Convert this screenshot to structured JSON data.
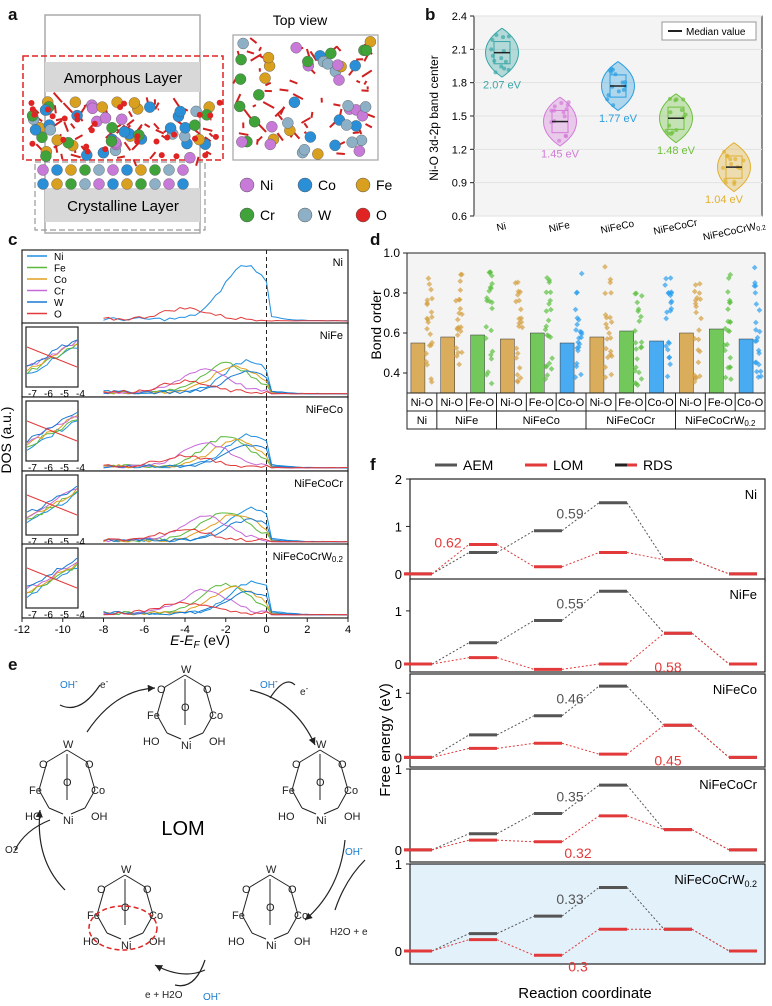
{
  "panel_labels": {
    "a": "a",
    "b": "b",
    "c": "c",
    "d": "d",
    "e": "e",
    "f": "f"
  },
  "panel_a": {
    "amorphous_label": "Amorphous Layer",
    "crystalline_label": "Crystalline Layer",
    "top_view_label": "Top view",
    "legend": [
      {
        "label": "Ni",
        "color": "#c77ad8"
      },
      {
        "label": "Co",
        "color": "#2a8fd6"
      },
      {
        "label": "Fe",
        "color": "#d9a020"
      },
      {
        "label": "Cr",
        "color": "#3fa33a"
      },
      {
        "label": "W",
        "color": "#8db0c6"
      },
      {
        "label": "O",
        "color": "#e02424"
      }
    ]
  },
  "chart_data": [
    {
      "id": "b",
      "type": "violin",
      "ylabel": "Ni-O 3d-2p band center",
      "ylim": [
        0.6,
        2.4
      ],
      "yticks": [
        "0.6",
        "0.9",
        "1.2",
        "1.5",
        "1.8",
        "2.1",
        "2.4"
      ],
      "legend": "Median value",
      "categories": [
        "Ni",
        "NiFe",
        "NiFeCo",
        "NiFeCoCr",
        "NiFeCoCrW0.2"
      ],
      "medians": [
        2.07,
        1.45,
        1.77,
        1.48,
        1.04
      ],
      "median_labels": [
        "2.07 eV",
        "1.45 eV",
        "1.77 eV",
        "1.48 eV",
        "1.04 eV"
      ],
      "colors": [
        "#3aa6a6",
        "#d47ad8",
        "#2a9ee0",
        "#6ec13d",
        "#e0b030"
      ]
    },
    {
      "id": "c",
      "type": "line",
      "ylabel": "DOS (a.u.)",
      "xlabel": "E-EF (eV)",
      "xlim": [
        -12,
        4
      ],
      "xticks": [
        "-12",
        "-10",
        "-8",
        "-6",
        "-4",
        "-2",
        "0",
        "2",
        "4"
      ],
      "legend": [
        {
          "label": "Ni",
          "color": "#1f8fe0"
        },
        {
          "label": "Fe",
          "color": "#5cb83a"
        },
        {
          "label": "Co",
          "color": "#e0a020"
        },
        {
          "label": "Cr",
          "color": "#c66ad8"
        },
        {
          "label": "W",
          "color": "#1a7ad0"
        },
        {
          "label": "O",
          "color": "#e23a3a"
        }
      ],
      "subpanels": [
        "Ni",
        "NiFe",
        "NiFeCo",
        "NiFeCoCr",
        "NiFeCoCrW0.2"
      ],
      "inset_ticks": [
        "-7",
        "-6",
        "-5",
        "-4"
      ]
    },
    {
      "id": "d",
      "type": "bar",
      "ylabel": "Bond order",
      "ylim": [
        0.3,
        1.0
      ],
      "yticks": [
        "0.4",
        "0.6",
        "0.8",
        "1.0"
      ],
      "bond_labels": [
        "Ni-O",
        "Ni-O",
        "Fe-O",
        "Ni-O",
        "Fe-O",
        "Co-O",
        "Ni-O",
        "Fe-O",
        "Co-O",
        "Ni-O",
        "Fe-O",
        "Co-O"
      ],
      "groups": [
        "Ni",
        "NiFe",
        "NiFeCo",
        "NiFeCoCr",
        "NiFeCoCrW0.2"
      ],
      "values": [
        0.55,
        0.58,
        0.59,
        0.57,
        0.6,
        0.55,
        0.58,
        0.61,
        0.56,
        0.6,
        0.62,
        0.57
      ],
      "bar_colors": [
        "#d4a040",
        "#d4a040",
        "#5cc040",
        "#d4a040",
        "#5cc040",
        "#2a9ef0",
        "#d4a040",
        "#5cc040",
        "#2a9ef0",
        "#d4a040",
        "#5cc040",
        "#2a9ef0"
      ]
    },
    {
      "id": "f",
      "type": "line",
      "ylabel": "Free energy (eV)",
      "xlabel": "Reaction coordinate",
      "legend": [
        "AEM",
        "LOM",
        "RDS"
      ],
      "subpanels": [
        {
          "name": "Ni",
          "aem": [
            0,
            0.45,
            0.91,
            1.5,
            0.3,
            0
          ],
          "lom": [
            0,
            0.62,
            0.15,
            0.45,
            0.3,
            0
          ],
          "aem_rds": "0.59",
          "lom_rds": "0.62",
          "yticks": [
            "0",
            "1",
            "2"
          ],
          "ymax": 2
        },
        {
          "name": "NiFe",
          "aem": [
            0,
            0.4,
            0.82,
            1.37,
            0.58,
            0
          ],
          "lom": [
            0,
            0.12,
            -0.1,
            0,
            0.58,
            0
          ],
          "aem_rds": "0.55",
          "lom_rds": "0.58",
          "yticks": [
            "0",
            "1"
          ],
          "ymax": 1.6
        },
        {
          "name": "NiFeCo",
          "aem": [
            0,
            0.35,
            0.65,
            1.11,
            0.5,
            0
          ],
          "lom": [
            0,
            0.14,
            0.22,
            0.05,
            0.5,
            0
          ],
          "aem_rds": "0.46",
          "lom_rds": "0.45",
          "yticks": [
            "0",
            "1"
          ],
          "ymax": 1.3
        },
        {
          "name": "NiFeCoCr",
          "aem": [
            0,
            0.2,
            0.45,
            0.8,
            0.25,
            0
          ],
          "lom": [
            0,
            0.12,
            0.1,
            0.42,
            0.25,
            0
          ],
          "aem_rds": "0.35",
          "lom_rds": "0.32",
          "yticks": [
            "0",
            "1"
          ],
          "ymax": 1.0
        },
        {
          "name": "NiFeCoCrW0.2",
          "aem": [
            0,
            0.2,
            0.4,
            0.73,
            0.25,
            0
          ],
          "lom": [
            0,
            0.13,
            -0.05,
            0.25,
            0.25,
            0
          ],
          "aem_rds": "0.33",
          "lom_rds": "0.3",
          "yticks": [
            "0",
            "1"
          ],
          "ymax": 1.0
        }
      ]
    }
  ],
  "panel_e": {
    "center_label": "LOM",
    "species": {
      "oh": "OH",
      "minus": "-",
      "e": "e",
      "h2o_e": "H2O + e",
      "e_h2o": "e + H2O",
      "o2": "O2"
    }
  }
}
